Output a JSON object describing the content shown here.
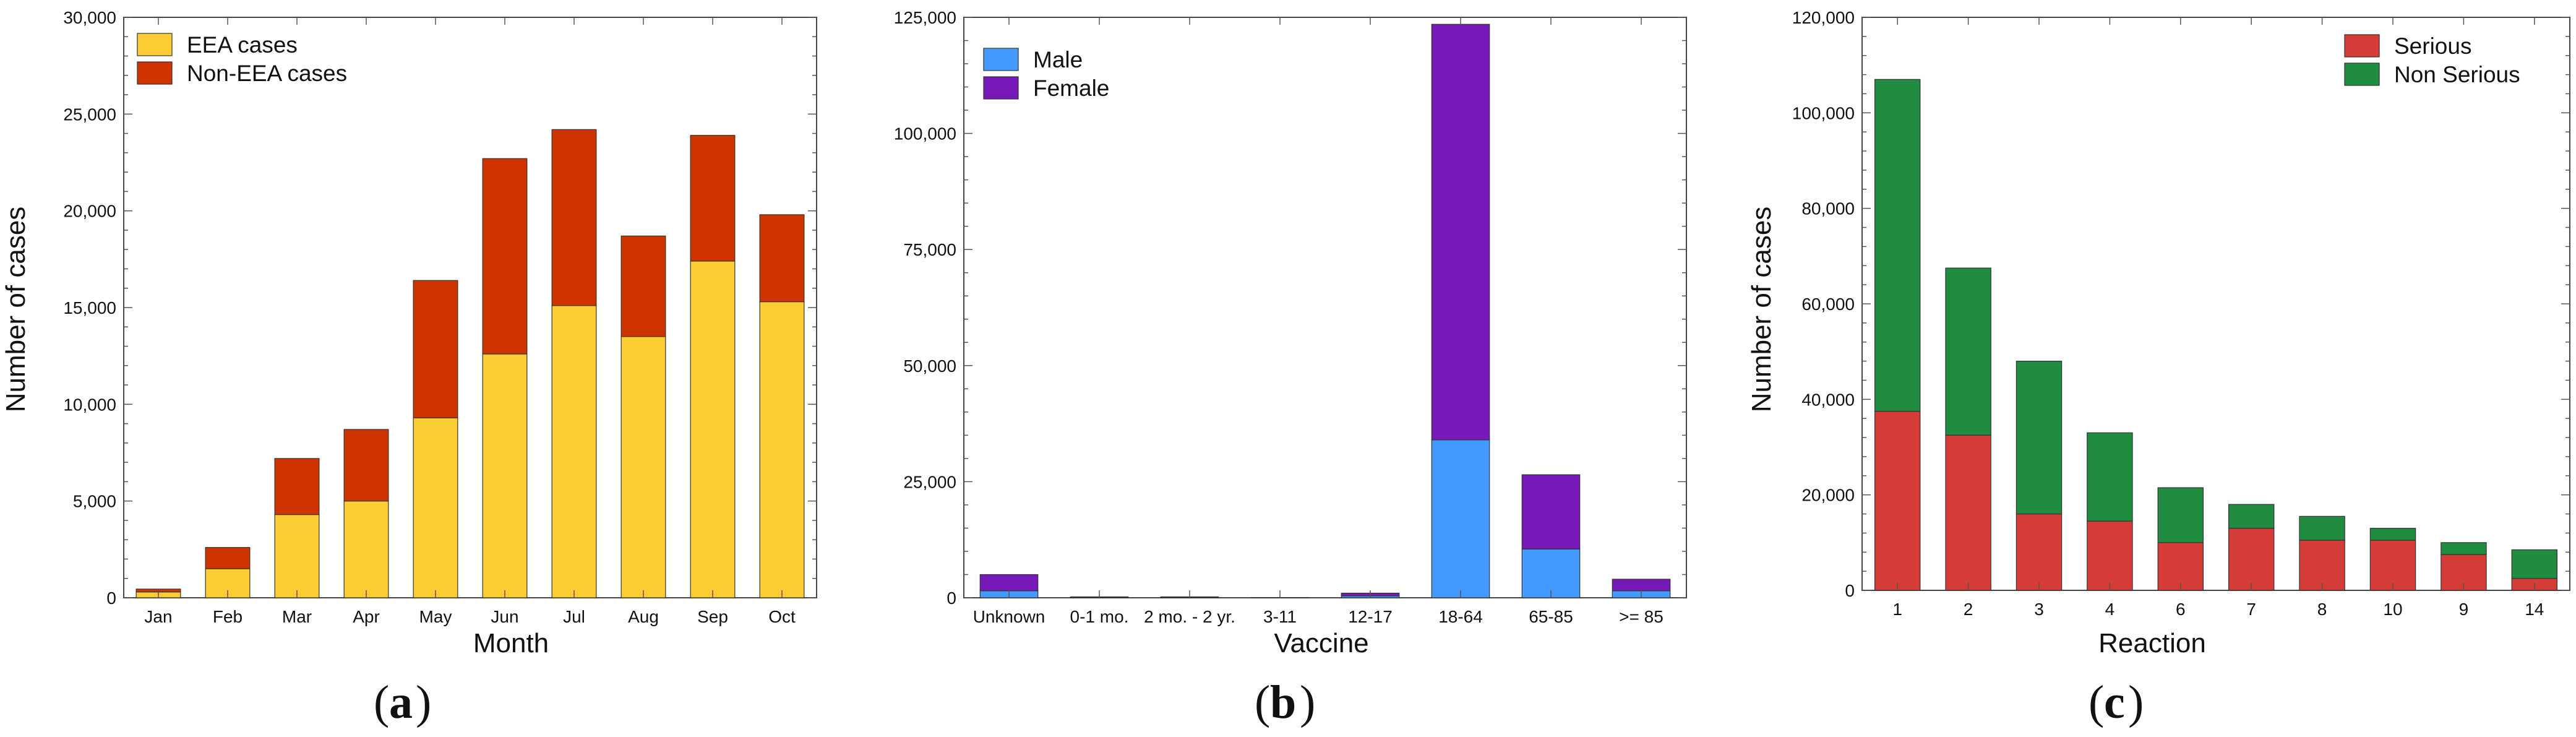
{
  "figure_colors": {
    "eea": "#FECC33",
    "non_eea": "#CE3300",
    "male": "#4499FF",
    "female": "#7718B8",
    "serious": "#D53B37",
    "non_serious": "#1F8C3F",
    "bar_stroke": "#333333"
  },
  "chart_data": [
    {
      "id": "a",
      "type": "bar",
      "stacked": true,
      "panel_label": "a",
      "categories": [
        "Jan",
        "Feb",
        "Mar",
        "Apr",
        "May",
        "Jun",
        "Jul",
        "Aug",
        "Sep",
        "Oct"
      ],
      "series": [
        {
          "name": "EEA cases",
          "color_key": "eea",
          "values": [
            300,
            1500,
            4300,
            5000,
            9300,
            12600,
            15100,
            13500,
            17400,
            15300
          ]
        },
        {
          "name": "Non-EEA cases",
          "color_key": "non_eea",
          "values": [
            150,
            1100,
            2900,
            3700,
            7100,
            10100,
            9100,
            5200,
            6500,
            4500
          ]
        }
      ],
      "xlabel": "Month",
      "ylabel": "Number of cases",
      "ylim": [
        0,
        30000
      ],
      "yticks": [
        0,
        5000,
        10000,
        15000,
        20000,
        25000,
        30000
      ],
      "ytick_labels": [
        "0",
        "5,000",
        "10,000",
        "15,000",
        "20,000",
        "25,000",
        "30,000"
      ],
      "legend_position": "top-left"
    },
    {
      "id": "b",
      "type": "bar",
      "stacked": true,
      "panel_label": "b",
      "categories": [
        "Unknown",
        "0-1 mo.",
        "2 mo. - 2 yr.",
        "3-11",
        "12-17",
        "18-64",
        "65-85",
        ">= 85"
      ],
      "series": [
        {
          "name": "Male",
          "color_key": "male",
          "values": [
            1500,
            100,
            100,
            30,
            400,
            34000,
            10500,
            1500
          ]
        },
        {
          "name": "Female",
          "color_key": "female",
          "values": [
            3500,
            100,
            100,
            30,
            600,
            89500,
            16000,
            2500
          ]
        }
      ],
      "xlabel": "Vaccine",
      "ylabel": "",
      "ylim": [
        0,
        125000
      ],
      "yticks": [
        0,
        25000,
        50000,
        75000,
        100000,
        125000
      ],
      "ytick_labels": [
        "0",
        "25,000",
        "50,000",
        "75,000",
        "100,000",
        "125,000"
      ],
      "legend_position": "top-left"
    },
    {
      "id": "c",
      "type": "bar",
      "stacked": true,
      "panel_label": "c",
      "categories": [
        "1",
        "2",
        "3",
        "4",
        "6",
        "7",
        "8",
        "10",
        "9",
        "14"
      ],
      "series": [
        {
          "name": "Serious",
          "color_key": "serious",
          "values": [
            37500,
            32500,
            16000,
            14500,
            10000,
            13000,
            10500,
            10500,
            7500,
            2500
          ]
        },
        {
          "name": "Non Serious",
          "color_key": "non_serious",
          "values": [
            69500,
            35000,
            32000,
            18500,
            11500,
            5000,
            5000,
            2500,
            2500,
            6000
          ]
        }
      ],
      "xlabel": "Reaction",
      "ylabel": "Number of cases",
      "ylim": [
        0,
        120000
      ],
      "yticks": [
        0,
        20000,
        40000,
        60000,
        80000,
        100000,
        120000
      ],
      "ytick_labels": [
        "0",
        "20,000",
        "40,000",
        "60,000",
        "80,000",
        "100,000",
        "120,000"
      ],
      "legend_position": "top-right"
    }
  ]
}
